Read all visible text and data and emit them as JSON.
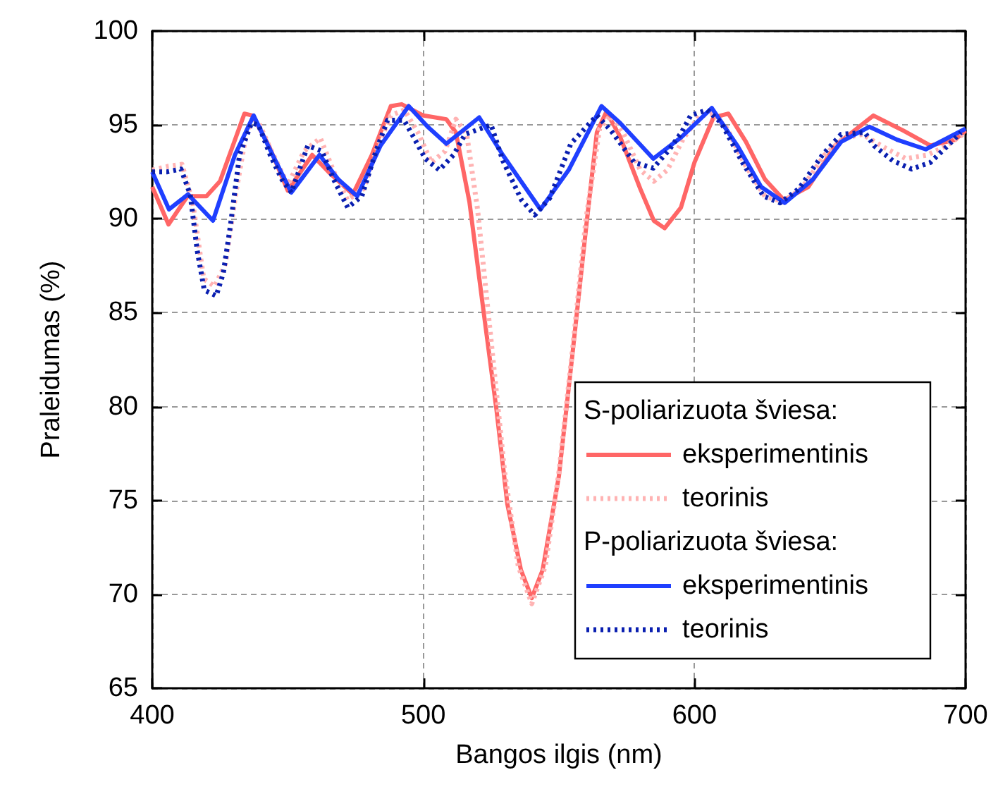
{
  "chart_data": {
    "type": "line",
    "xlabel": "Bangos ilgis (nm)",
    "ylabel": "Praleidumas (%)",
    "xlim": [
      400,
      700
    ],
    "xticks": [
      400,
      500,
      600,
      700
    ],
    "ylim": [
      65,
      100
    ],
    "yticks": [
      65,
      70,
      75,
      80,
      85,
      90,
      95,
      100
    ],
    "grid": true,
    "legend": "bottom right",
    "annotations": [
      "S-poliarizuota šviesa:",
      "P-poliarizuota šviesa:"
    ],
    "series": [
      {
        "name": "eksperimentinis",
        "color": "#ff6666",
        "line_style": "solid",
        "x": [
          400,
          406,
          413,
          420,
          425,
          434,
          437,
          443,
          450,
          459,
          465,
          474,
          481,
          488,
          492,
          500,
          508.5,
          512,
          517,
          522,
          527,
          531,
          536,
          540,
          544,
          550,
          555,
          560,
          564,
          567.5,
          572.5,
          580,
          585,
          589,
          595,
          600,
          607,
          612.5,
          619,
          626,
          633,
          642,
          652,
          666,
          677,
          687,
          696,
          700
        ],
        "values": [
          91.7,
          89.7,
          91.2,
          91.2,
          92.0,
          95.6,
          95.5,
          93.9,
          91.5,
          93.4,
          92.5,
          91.3,
          93.4,
          96.0,
          96.1,
          95.5,
          95.3,
          94.6,
          90.9,
          85.3,
          79.8,
          74.8,
          71.3,
          69.8,
          71.3,
          76.3,
          82.8,
          89.5,
          94.6,
          95.7,
          94.4,
          91.6,
          89.9,
          89.5,
          90.6,
          93.0,
          95.4,
          95.6,
          94.1,
          92.1,
          91.0,
          91.7,
          93.9,
          95.5,
          94.7,
          93.9,
          94.2,
          94.7
        ]
      },
      {
        "name": "teorinis",
        "color": "#ffb3b3",
        "line_style": "dotted",
        "x": [
          400,
          406,
          411,
          415,
          419,
          423,
          427,
          431,
          435,
          439,
          444,
          450,
          456,
          462,
          467,
          472,
          478,
          483,
          488,
          493,
          498,
          503,
          508,
          512,
          516,
          520,
          525,
          530,
          535,
          540,
          545,
          550,
          555,
          560,
          565,
          569,
          574,
          580,
          585,
          590,
          596,
          602,
          607,
          612,
          619,
          626,
          633,
          640,
          648,
          655,
          662,
          670,
          678,
          686,
          693,
          700
        ],
        "values": [
          92.6,
          92.8,
          92.9,
          90.8,
          86.8,
          86.4,
          87.6,
          91.5,
          94.8,
          95.2,
          93.6,
          91.8,
          93.6,
          94.3,
          92.5,
          91.0,
          91.6,
          93.8,
          95.5,
          95.8,
          94.6,
          93.0,
          93.6,
          95.3,
          94.5,
          90.5,
          83.5,
          76.5,
          71.5,
          69.5,
          71.5,
          76.5,
          83.0,
          90.0,
          94.8,
          95.5,
          94.5,
          92.6,
          92.0,
          92.6,
          94.3,
          95.5,
          95.6,
          94.8,
          92.8,
          91.2,
          90.9,
          91.7,
          93.4,
          94.3,
          94.5,
          93.8,
          93.2,
          93.4,
          93.9,
          94.6
        ]
      },
      {
        "name": "eksperimentinis",
        "color": "#1f3fff",
        "line_style": "solid",
        "x": [
          400,
          406.2,
          413.2,
          422.4,
          430.5,
          437.4,
          444.4,
          451.3,
          461.7,
          468.6,
          475.6,
          484.2,
          494.6,
          501.6,
          508.5,
          520.6,
          529.3,
          543.2,
          553.6,
          565.7,
          572.6,
          584.8,
          595.2,
          606.4,
          616,
          624.6,
          633.3,
          643.7,
          654.1,
          664.5,
          674.9,
          685.3,
          700
        ],
        "values": [
          92.5,
          90.5,
          91.3,
          89.9,
          93.4,
          95.5,
          93.4,
          91.4,
          93.4,
          92.1,
          91.2,
          93.9,
          96.0,
          94.9,
          94.0,
          95.4,
          93.4,
          90.5,
          92.6,
          96.0,
          95.1,
          93.2,
          94.35,
          95.9,
          93.85,
          91.7,
          90.85,
          92.1,
          94.1,
          94.9,
          94.2,
          93.7,
          94.8
        ]
      },
      {
        "name": "teorinis",
        "color": "#0a1fb0",
        "line_style": "dotted",
        "x": [
          400,
          405.4,
          410.6,
          414,
          416.6,
          419.2,
          423.6,
          426.2,
          428.8,
          432.2,
          436.6,
          439.2,
          443.5,
          447.8,
          451.3,
          457.4,
          462.6,
          466.9,
          472.1,
          477.3,
          482.5,
          486.8,
          492.9,
          496.4,
          500.7,
          505.9,
          511.1,
          515.4,
          525,
          529.3,
          536.2,
          541.1,
          546.6,
          554.4,
          564,
          569.2,
          577.8,
          584.8,
          590.8,
          595.2,
          598.6,
          604.7,
          609.9,
          617.7,
          625.5,
          631.6,
          638.5,
          647.2,
          654.1,
          662.8,
          666.2,
          673.1,
          680.1,
          687,
          693.1,
          698.3
        ],
        "values": [
          92.5,
          92.5,
          92.65,
          91.3,
          88.3,
          86.2,
          85.9,
          87.1,
          89.6,
          93.4,
          95.1,
          95.0,
          93.4,
          92.1,
          91.4,
          93.9,
          93.6,
          92.1,
          90.6,
          91.2,
          93.6,
          95.25,
          95.25,
          94.35,
          93.2,
          92.6,
          93.4,
          94.5,
          95.0,
          93.1,
          91.0,
          90.2,
          91.1,
          94.0,
          95.5,
          94.7,
          93.0,
          92.7,
          93.7,
          94.6,
          95.5,
          95.8,
          95.1,
          93.0,
          91.2,
          90.85,
          91.6,
          93.4,
          94.5,
          94.6,
          93.9,
          93.1,
          92.65,
          93.0,
          93.85,
          94.6
        ]
      }
    ]
  }
}
